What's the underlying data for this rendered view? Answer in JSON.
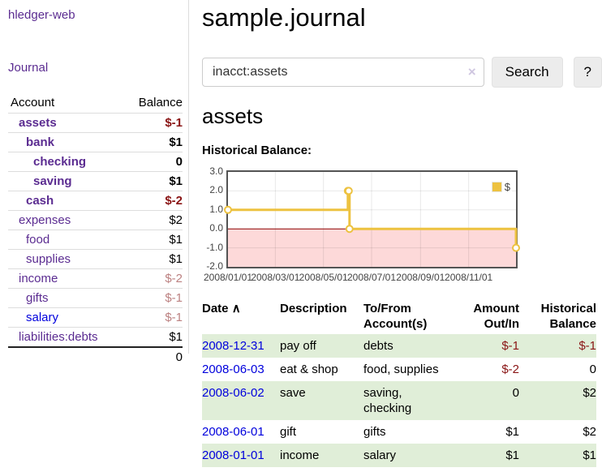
{
  "app": {
    "brand": "hledger-web"
  },
  "colors": {
    "link_purple": "#5b2c91",
    "link_blue": "#0000dd",
    "negative_red": "#8a1515",
    "negative_light": "#bc8181",
    "row_green": "#e0eed8",
    "series_gold": "#edc240",
    "negative_region_pink": "#fdd9d9",
    "zero_line_dark_red": "#8b0000"
  },
  "sidebar": {
    "journal_link": "Journal",
    "accounts_table": {
      "account_header": "Account",
      "balance_header": "Balance",
      "rows": [
        {
          "account": "assets",
          "balance": "$-1"
        },
        {
          "account": "bank",
          "balance": "$1"
        },
        {
          "account": "checking",
          "balance": "0"
        },
        {
          "account": "saving",
          "balance": "$1"
        },
        {
          "account": "cash",
          "balance": "$-2"
        },
        {
          "account": "expenses",
          "balance": "$2"
        },
        {
          "account": "food",
          "balance": "$1"
        },
        {
          "account": "supplies",
          "balance": "$1"
        },
        {
          "account": "income",
          "balance": "$-2"
        },
        {
          "account": "gifts",
          "balance": "$-1"
        },
        {
          "account": "salary",
          "balance": "$-1"
        },
        {
          "account": "liabilities:debts",
          "balance": "$1"
        }
      ],
      "total": "0"
    }
  },
  "main": {
    "title": "sample.journal",
    "search": {
      "value": "inacct:assets",
      "clear_icon": "×",
      "search_button": "Search",
      "help_button": "?"
    },
    "account_heading": "assets",
    "section_label": "Historical Balance:",
    "register": {
      "headers": {
        "date": "Date",
        "sort_icon": "∧",
        "description": "Description",
        "tofrom": "To/From Account(s)",
        "amount": "Amount Out/In",
        "balance": "Historical Balance"
      },
      "rows": [
        {
          "date": "2008-12-31",
          "description": "pay off",
          "accounts": "debts",
          "amount": "$-1",
          "balance": "$-1"
        },
        {
          "date": "2008-06-03",
          "description": "eat & shop",
          "accounts": "food, supplies",
          "amount": "$-2",
          "balance": "0"
        },
        {
          "date": "2008-06-02",
          "description": "save",
          "accounts": "saving, checking",
          "amount": "0",
          "balance": "$2"
        },
        {
          "date": "2008-06-01",
          "description": "gift",
          "accounts": "gifts",
          "amount": "$1",
          "balance": "$2"
        },
        {
          "date": "2008-01-01",
          "description": "income",
          "accounts": "salary",
          "amount": "$1",
          "balance": "$1"
        }
      ]
    }
  },
  "chart_data": {
    "type": "line",
    "style": "steps",
    "title": "Historical Balance",
    "xlim": [
      "2008-01-01",
      "2008-12-31"
    ],
    "ylim": [
      -2,
      3
    ],
    "x_ticks": [
      "2008/01/01",
      "2008/03/01",
      "2008/05/01",
      "2008/07/01",
      "2008/09/01",
      "2008/11/01"
    ],
    "y_ticks": [
      3.0,
      2.0,
      1.0,
      0.0,
      -1.0,
      -2.0
    ],
    "grid": true,
    "legend": {
      "label": "$",
      "position": "top-right"
    },
    "series": [
      {
        "name": "$",
        "color": "#edc240",
        "points": [
          [
            "2008-01-01",
            1
          ],
          [
            "2008-06-01",
            2
          ],
          [
            "2008-06-02",
            2
          ],
          [
            "2008-06-03",
            0
          ],
          [
            "2008-12-31",
            -1
          ]
        ]
      }
    ],
    "negative_region_color": "#fdd9d9",
    "zero_line_color": "#8b0000"
  }
}
